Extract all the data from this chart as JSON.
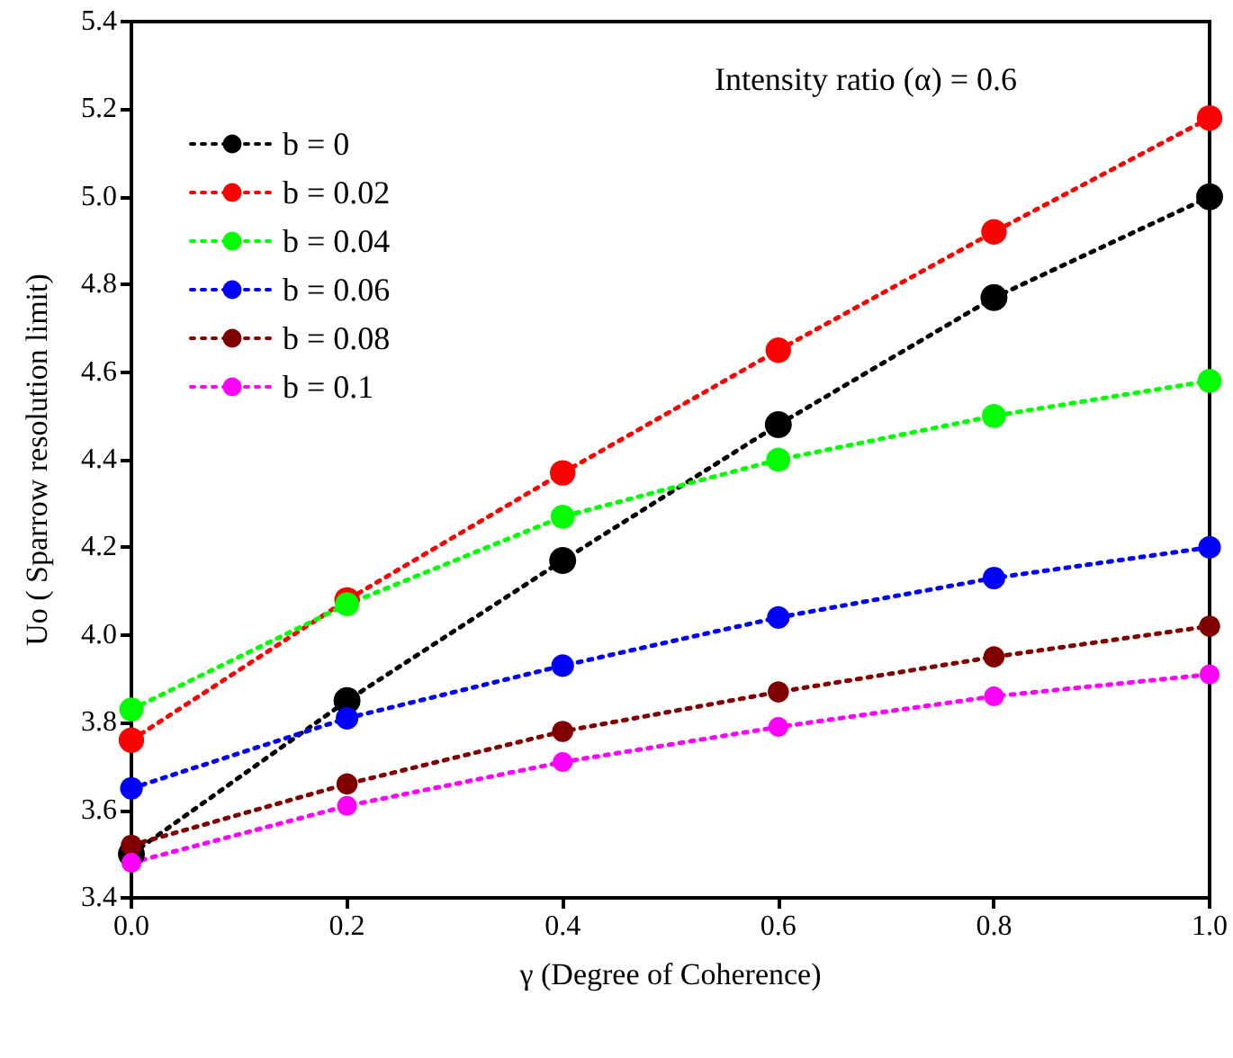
{
  "chart_data": {
    "type": "line",
    "xlabel": "γ (Degree of Coherence)",
    "ylabel": "Uo ( Sparrow resolution limit)",
    "annotations": [
      "Intensity ratio (α) = 0.6"
    ],
    "x": [
      0,
      0.2,
      0.4,
      0.6,
      0.8,
      1.0
    ],
    "series": [
      {
        "name": "b = 0",
        "color": "#000000",
        "values": [
          3.5,
          3.85,
          4.17,
          4.48,
          4.77,
          5.0
        ]
      },
      {
        "name": "b = 0.02",
        "color": "#ff0000",
        "values": [
          3.76,
          4.08,
          4.37,
          4.65,
          4.92,
          5.18
        ]
      },
      {
        "name": "b = 0.04",
        "color": "#00ff00",
        "values": [
          3.83,
          4.07,
          4.27,
          4.4,
          4.5,
          4.58
        ]
      },
      {
        "name": "b = 0.06",
        "color": "#0000ff",
        "values": [
          3.65,
          3.81,
          3.93,
          4.04,
          4.13,
          4.2
        ]
      },
      {
        "name": "b = 0.08",
        "color": "#800000",
        "values": [
          3.52,
          3.66,
          3.78,
          3.87,
          3.95,
          4.02
        ]
      },
      {
        "name": "b = 0.1",
        "color": "#ff00ff",
        "values": [
          3.48,
          3.61,
          3.71,
          3.79,
          3.86,
          3.91
        ]
      }
    ],
    "xlim": [
      0,
      1.0
    ],
    "xticks": [
      {
        "value": 0,
        "label": "0.0"
      },
      0.2,
      0.4,
      0.6,
      0.8,
      {
        "value": 1.0,
        "label": "1.0"
      }
    ],
    "ylim": [
      3.4,
      5.4
    ],
    "yticks": [
      3.4,
      3.6,
      3.8,
      {
        "value": 4.0,
        "label": "4.0"
      },
      4.2,
      4.4,
      4.6,
      4.8,
      {
        "value": 5.0,
        "label": "5.0"
      },
      5.2,
      5.4
    ],
    "grid": false,
    "legend": "top left",
    "marker": "circle",
    "line_style": "dotted"
  }
}
